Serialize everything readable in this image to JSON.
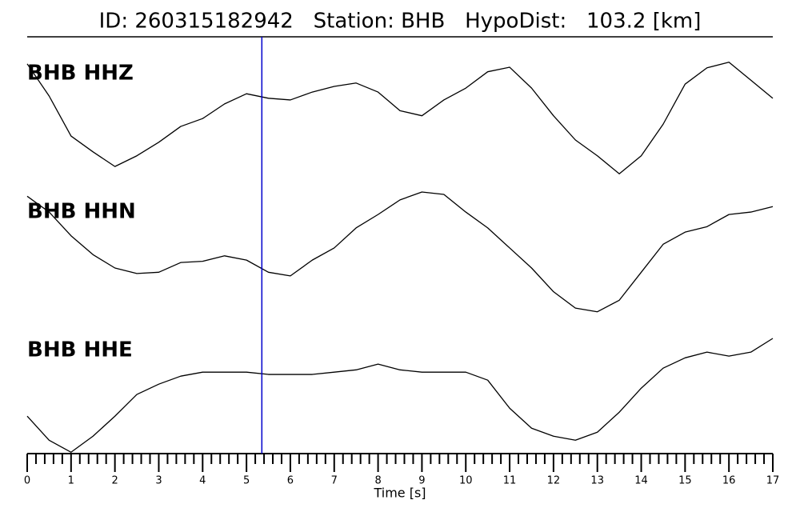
{
  "chart_data": {
    "type": "line",
    "title": "ID: 260315182942   Station: BHB   HypoDist:   103.2 [km]",
    "xlabel": "Time [s]",
    "x": [
      0,
      0.5,
      1,
      1.5,
      2,
      2.5,
      3,
      3.5,
      4,
      4.5,
      5,
      5.5,
      6,
      6.5,
      7,
      7.5,
      8,
      8.5,
      9,
      9.5,
      10,
      10.5,
      11,
      11.5,
      12,
      12.5,
      13,
      13.5,
      14,
      14.5,
      15,
      15.5,
      16,
      16.5,
      17
    ],
    "xlim": [
      0,
      17
    ],
    "xticks": [
      0,
      1,
      2,
      3,
      4,
      5,
      6,
      7,
      8,
      9,
      10,
      11,
      12,
      13,
      14,
      15,
      16,
      17
    ],
    "xminorticks": [
      0.2,
      0.4,
      0.6,
      0.8,
      1.2,
      1.4,
      1.6,
      1.8,
      2.2,
      2.4,
      2.6,
      2.8,
      3.2,
      3.4,
      3.6,
      3.8,
      4.2,
      4.4,
      4.6,
      4.8,
      5.2,
      5.4,
      5.6,
      5.8,
      6.2,
      6.4,
      6.6,
      6.8,
      7.2,
      7.4,
      7.6,
      7.8,
      8.2,
      8.4,
      8.6,
      8.8,
      9.2,
      9.4,
      9.6,
      9.8,
      10.2,
      10.4,
      10.6,
      10.8,
      11.2,
      11.4,
      11.6,
      11.8,
      12.2,
      12.4,
      12.6,
      12.8,
      13.2,
      13.4,
      13.6,
      13.8,
      14.2,
      14.4,
      14.6,
      14.8,
      15.2,
      15.4,
      15.6,
      15.8,
      16.2,
      16.4,
      16.6,
      16.8
    ],
    "ylim": [
      -1,
      1
    ],
    "label_color": "#4e9a06",
    "marker_x": 5.35,
    "marker_color": "#0000cc",
    "series": [
      {
        "name": "BHB HHZ",
        "color": "#000000",
        "values": [
          0.96,
          0.39,
          -0.32,
          -0.6,
          -0.86,
          -0.67,
          -0.43,
          -0.15,
          -0.01,
          0.25,
          0.43,
          0.35,
          0.32,
          0.46,
          0.56,
          0.62,
          0.46,
          0.13,
          0.04,
          0.32,
          0.53,
          0.82,
          0.9,
          0.53,
          0.04,
          -0.39,
          -0.67,
          -0.99,
          -0.67,
          -0.11,
          0.6,
          0.89,
          0.99,
          0.67,
          0.35
        ]
      },
      {
        "name": "BHB HHN",
        "color": "#000000",
        "values": [
          0.93,
          0.67,
          0.28,
          -0.03,
          -0.25,
          -0.34,
          -0.32,
          -0.16,
          -0.14,
          -0.05,
          -0.12,
          -0.32,
          -0.38,
          -0.12,
          0.08,
          0.41,
          0.63,
          0.87,
          1.0,
          0.96,
          0.67,
          0.41,
          0.08,
          -0.25,
          -0.64,
          -0.91,
          -0.97,
          -0.78,
          -0.32,
          0.14,
          0.34,
          0.43,
          0.63,
          0.67,
          0.76
        ]
      },
      {
        "name": "BHB HHE",
        "color": "#000000",
        "values": [
          -0.36,
          -0.78,
          -0.99,
          -0.71,
          -0.36,
          0.02,
          0.2,
          0.34,
          0.41,
          0.41,
          0.41,
          0.37,
          0.37,
          0.37,
          0.41,
          0.45,
          0.55,
          0.45,
          0.41,
          0.41,
          0.41,
          0.27,
          -0.22,
          -0.57,
          -0.71,
          -0.78,
          -0.64,
          -0.29,
          0.13,
          0.48,
          0.66,
          0.76,
          0.69,
          0.76,
          1.0
        ]
      }
    ]
  }
}
